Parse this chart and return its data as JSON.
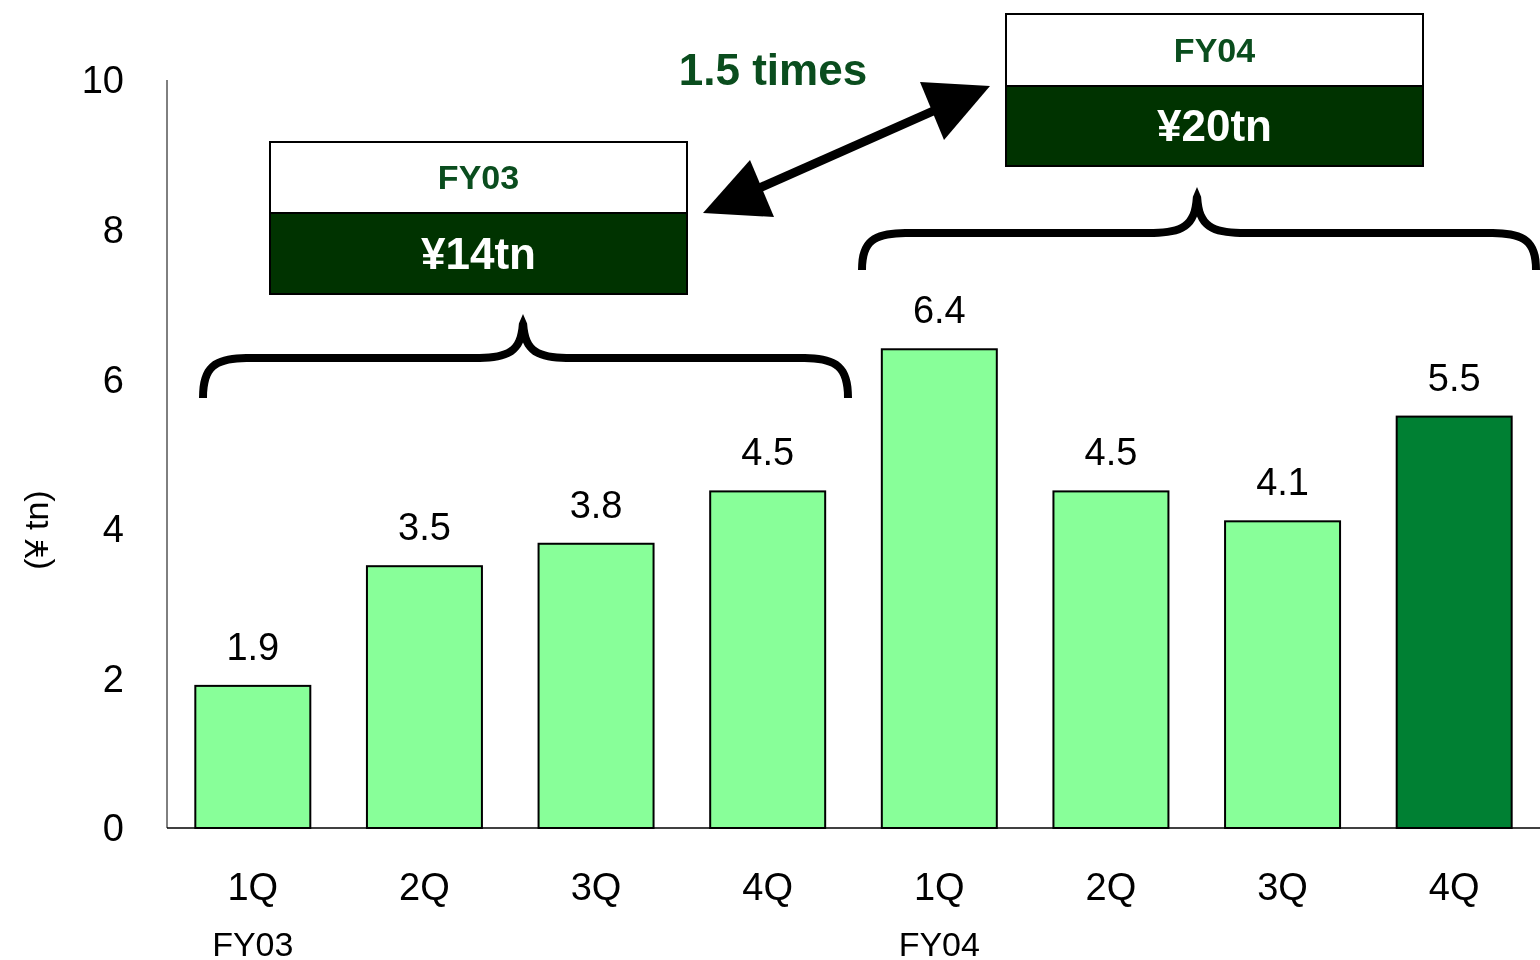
{
  "chart_data": {
    "type": "bar",
    "ylabel": "(¥ tn)",
    "categories": [
      "1Q\nFY03",
      "2Q",
      "3Q",
      "4Q",
      "1Q\nFY04",
      "2Q",
      "3Q",
      "4Q"
    ],
    "values": [
      1.9,
      3.5,
      3.8,
      4.5,
      6.4,
      4.5,
      4.1,
      5.5
    ],
    "colors": [
      "#88ff99",
      "#88ff99",
      "#88ff99",
      "#88ff99",
      "#88ff99",
      "#88ff99",
      "#88ff99",
      "#008033"
    ],
    "ylim": [
      0,
      10
    ],
    "yticks": [
      0,
      2,
      4,
      6,
      8,
      10
    ],
    "grid": false,
    "data_labels": true,
    "annotations": [
      "FY03",
      "¥14tn",
      "FY04",
      "¥20tn",
      "1.5 times"
    ]
  }
}
